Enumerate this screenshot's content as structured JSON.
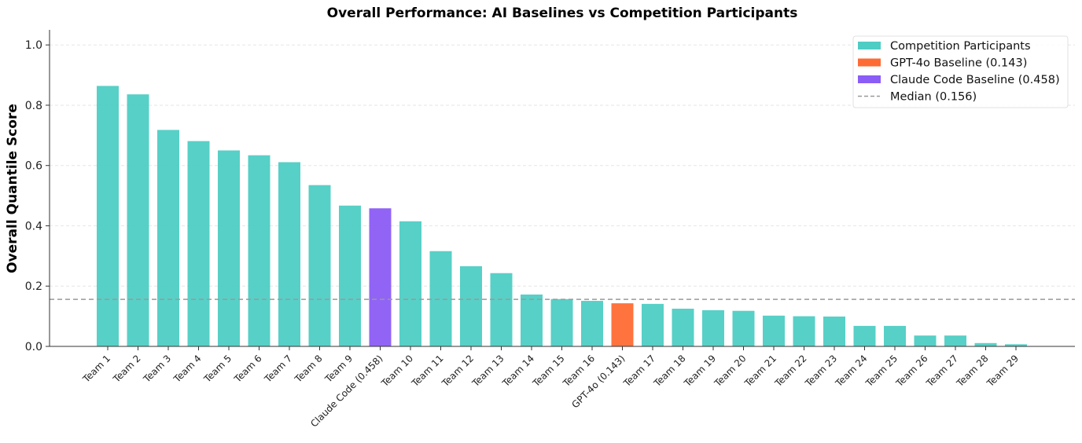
{
  "chart_data": {
    "type": "bar",
    "title": "Overall Performance: AI Baselines vs Competition Participants",
    "xlabel": "",
    "ylabel": "Overall Quantile Score",
    "ylim": [
      0,
      1.05
    ],
    "yticks": [
      "0.0",
      "0.2",
      "0.4",
      "0.6",
      "0.8",
      "1.0"
    ],
    "grid": "y-dashed",
    "legend_position": "top-right",
    "colors": {
      "participant": "#4ECDC4",
      "gpt": "#FF6B35",
      "claude": "#8B5CF6",
      "median": "#999999"
    },
    "categories": [
      "Team 1",
      "Team 2",
      "Team 3",
      "Team 4",
      "Team 5",
      "Team 6",
      "Team 7",
      "Team 8",
      "Team 9",
      "Claude Code (0.458)",
      "Team 10",
      "Team 11",
      "Team 12",
      "Team 13",
      "Team 14",
      "Team 15",
      "Team 16",
      "GPT-4o (0.143)",
      "Team 17",
      "Team 18",
      "Team 19",
      "Team 20",
      "Team 21",
      "Team 22",
      "Team 23",
      "Team 24",
      "Team 25",
      "Team 26",
      "Team 27",
      "Team 28",
      "Team 29"
    ],
    "values": [
      0.864,
      0.836,
      0.718,
      0.681,
      0.65,
      0.634,
      0.611,
      0.535,
      0.467,
      0.458,
      0.415,
      0.316,
      0.266,
      0.243,
      0.172,
      0.157,
      0.151,
      0.143,
      0.141,
      0.125,
      0.12,
      0.118,
      0.102,
      0.1,
      0.099,
      0.068,
      0.068,
      0.036,
      0.036,
      0.011,
      0.007
    ],
    "groups": [
      "participant",
      "participant",
      "participant",
      "participant",
      "participant",
      "participant",
      "participant",
      "participant",
      "participant",
      "claude",
      "participant",
      "participant",
      "participant",
      "participant",
      "participant",
      "participant",
      "participant",
      "gpt",
      "participant",
      "participant",
      "participant",
      "participant",
      "participant",
      "participant",
      "participant",
      "participant",
      "participant",
      "participant",
      "participant",
      "participant",
      "participant"
    ],
    "median": 0.156,
    "legend": [
      {
        "label": "Competition Participants",
        "group": "participant"
      },
      {
        "label": "GPT-4o Baseline (0.143)",
        "group": "gpt"
      },
      {
        "label": "Claude Code Baseline (0.458)",
        "group": "claude"
      },
      {
        "label": "Median (0.156)",
        "group": "median"
      }
    ]
  }
}
